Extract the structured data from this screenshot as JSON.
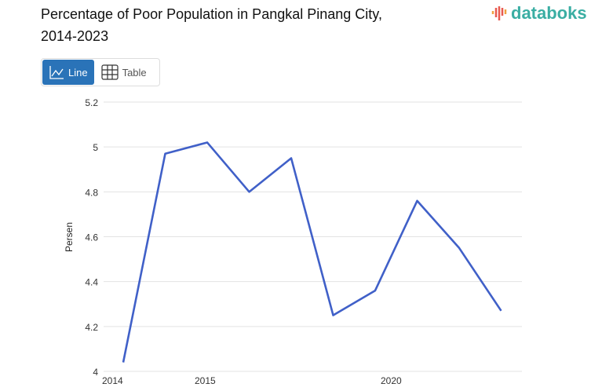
{
  "header": {
    "title_line1": "Percentage of Poor Population in Pangkal Pinang City,",
    "title_line2": "2014-2023",
    "logo": "databoks"
  },
  "toggle": {
    "line_label": "Line",
    "table_label": "Table",
    "icons": [
      "line-chart-icon",
      "table-icon"
    ]
  },
  "chart_data": {
    "type": "line",
    "title": "Percentage of Poor Population in Pangkal Pinang City, 2014-2023",
    "xlabel": "",
    "ylabel": "Persen",
    "x": [
      2014,
      2015,
      2016,
      2017,
      2018,
      2019,
      2020,
      2021,
      2022,
      2023
    ],
    "series": [
      {
        "name": "Persen",
        "values": [
          4.04,
          4.97,
          5.02,
          4.8,
          4.95,
          4.25,
          4.36,
          4.76,
          4.55,
          4.27
        ],
        "color": "#4060c8"
      }
    ],
    "ylim": [
      4,
      5.2
    ],
    "yticks": [
      "4",
      "4.2",
      "4.4",
      "4.6",
      "4.8",
      "5",
      "5.2"
    ],
    "xticks": [
      "2014",
      "2015",
      "2020"
    ],
    "grid": true
  }
}
